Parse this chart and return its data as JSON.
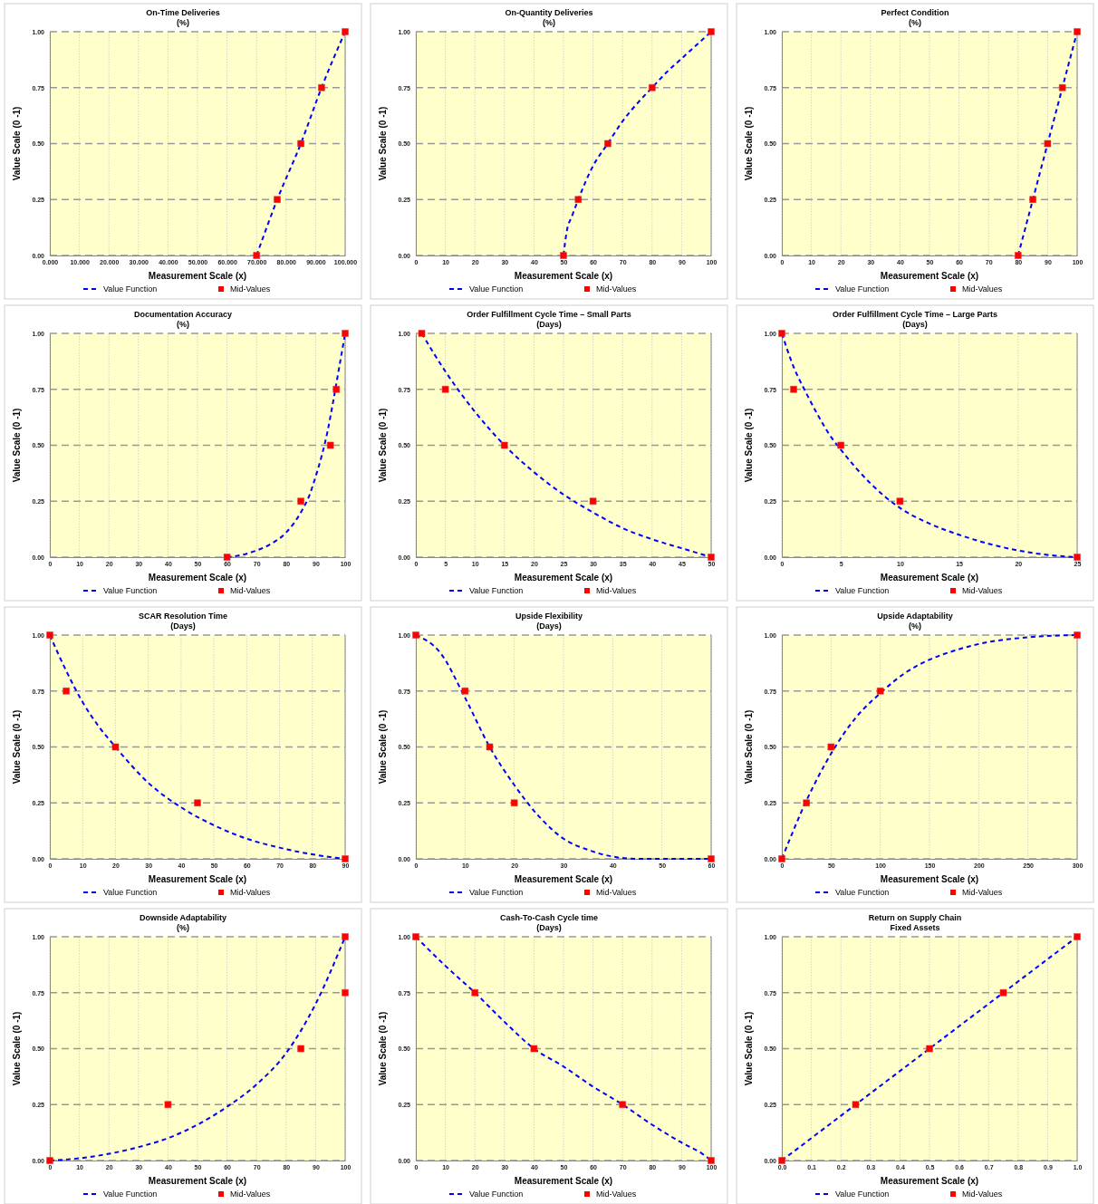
{
  "chart_data": [
    {
      "type": "line",
      "title": "On-Time Deliveries",
      "subtitle": "(%)",
      "xlabel": "Measurement  Scale (x)",
      "ylabel": "Value Scale (0 -1)",
      "xlim": [
        0,
        100
      ],
      "xticks": [
        {
          "value": 0,
          "label": "0.000"
        },
        {
          "value": 10,
          "label": "10.000"
        },
        {
          "value": 20,
          "label": "20.000"
        },
        {
          "value": 30,
          "label": "30.000"
        },
        {
          "value": 40,
          "label": "40.000"
        },
        {
          "value": 50,
          "label": "50.000"
        },
        {
          "value": 60,
          "label": "60.000"
        },
        {
          "value": 70,
          "label": "70.000"
        },
        {
          "value": 80,
          "label": "80.000"
        },
        {
          "value": 90,
          "label": "90.000"
        },
        {
          "value": 100,
          "label": "100.000"
        }
      ],
      "ylim": [
        0,
        1
      ],
      "yticks": [
        {
          "value": 0,
          "label": "0.00"
        },
        {
          "value": 0.25,
          "label": "0.25"
        },
        {
          "value": 0.5,
          "label": "0.50"
        },
        {
          "value": 0.75,
          "label": "0.75"
        },
        {
          "value": 1,
          "label": "1.00"
        }
      ],
      "grid": true,
      "legend": "bottom",
      "series": [
        {
          "name": "Value Function",
          "type": "line",
          "color": "#0000ff",
          "line_style": "dashed",
          "marker": "none",
          "x": [
            70,
            77,
            85,
            92,
            100
          ],
          "values": [
            0,
            0.25,
            0.5,
            0.75,
            1
          ]
        },
        {
          "name": "Mid-Values",
          "type": "scatter",
          "color": "#ff0000",
          "marker": "square",
          "x": [
            70,
            77,
            85,
            92,
            100
          ],
          "values": [
            0,
            0.25,
            0.5,
            0.75,
            1
          ]
        }
      ]
    },
    {
      "type": "line",
      "title": "On-Quantity Deliveries",
      "subtitle": "(%)",
      "xlabel": "Measurement  Scale (x)",
      "ylabel": "Value Scale (0 -1)",
      "xlim": [
        0,
        100
      ],
      "xticks": [
        0,
        10,
        20,
        30,
        40,
        50,
        60,
        70,
        80,
        90,
        100
      ],
      "ylim": [
        0,
        1
      ],
      "yticks": [
        {
          "value": 0,
          "label": "0.00"
        },
        {
          "value": 0.25,
          "label": "0.25"
        },
        {
          "value": 0.5,
          "label": "0.50"
        },
        {
          "value": 0.75,
          "label": "0.75"
        },
        {
          "value": 1,
          "label": "1.00"
        }
      ],
      "grid": true,
      "legend": "bottom",
      "series": [
        {
          "name": "Value Function",
          "type": "line",
          "color": "#0000ff",
          "line_style": "dashed",
          "marker": "none",
          "x": [
            50,
            51,
            53,
            55,
            60,
            65,
            70,
            75,
            80,
            85,
            90,
            95,
            100
          ],
          "values": [
            0,
            0.1,
            0.18,
            0.25,
            0.4,
            0.5,
            0.6,
            0.68,
            0.75,
            0.82,
            0.88,
            0.94,
            1
          ]
        },
        {
          "name": "Mid-Values",
          "type": "scatter",
          "color": "#ff0000",
          "marker": "square",
          "x": [
            50,
            55,
            65,
            80,
            100
          ],
          "values": [
            0,
            0.25,
            0.5,
            0.75,
            1
          ]
        }
      ]
    },
    {
      "type": "line",
      "title": "Perfect Condition",
      "subtitle": "(%)",
      "xlabel": "Measurement  Scale (x)",
      "ylabel": "Value Scale (0 -1)",
      "xlim": [
        0,
        100
      ],
      "xticks": [
        0,
        10,
        20,
        30,
        40,
        50,
        60,
        70,
        80,
        90,
        100
      ],
      "ylim": [
        0,
        1
      ],
      "yticks": [
        {
          "value": 0,
          "label": "0.00"
        },
        {
          "value": 0.25,
          "label": "0.25"
        },
        {
          "value": 0.5,
          "label": "0.50"
        },
        {
          "value": 0.75,
          "label": "0.75"
        },
        {
          "value": 1,
          "label": "1.00"
        }
      ],
      "grid": true,
      "legend": "bottom",
      "series": [
        {
          "name": "Value Function",
          "type": "line",
          "color": "#0000ff",
          "line_style": "dashed",
          "marker": "none",
          "x": [
            80,
            85,
            90,
            95,
            100
          ],
          "values": [
            0,
            0.25,
            0.5,
            0.75,
            1
          ]
        },
        {
          "name": "Mid-Values",
          "type": "scatter",
          "color": "#ff0000",
          "marker": "square",
          "x": [
            80,
            85,
            90,
            95,
            100
          ],
          "values": [
            0,
            0.25,
            0.5,
            0.75,
            1
          ]
        }
      ]
    },
    {
      "type": "line",
      "title": "Documentation Accuracy",
      "subtitle": "(%)",
      "xlabel": "Measurement  Scale (x)",
      "ylabel": "Value Scale (0 -1)",
      "xlim": [
        0,
        100
      ],
      "xticks": [
        0,
        10,
        20,
        30,
        40,
        50,
        60,
        70,
        80,
        90,
        100
      ],
      "ylim": [
        0,
        1
      ],
      "yticks": [
        {
          "value": 0,
          "label": "0.00"
        },
        {
          "value": 0.25,
          "label": "0.25"
        },
        {
          "value": 0.5,
          "label": "0.50"
        },
        {
          "value": 0.75,
          "label": "0.75"
        },
        {
          "value": 1,
          "label": "1.00"
        }
      ],
      "grid": true,
      "legend": "bottom",
      "series": [
        {
          "name": "Value Function",
          "type": "line",
          "color": "#0000ff",
          "line_style": "dashed",
          "marker": "none",
          "x": [
            60,
            65,
            70,
            75,
            80,
            85,
            88,
            90,
            92,
            94,
            96,
            98,
            100
          ],
          "values": [
            0,
            0.01,
            0.03,
            0.06,
            0.11,
            0.2,
            0.28,
            0.36,
            0.45,
            0.56,
            0.7,
            0.85,
            1
          ]
        },
        {
          "name": "Mid-Values",
          "type": "scatter",
          "color": "#ff0000",
          "marker": "square",
          "x": [
            60,
            85,
            95,
            97,
            100
          ],
          "values": [
            0,
            0.25,
            0.5,
            0.75,
            1
          ]
        }
      ]
    },
    {
      "type": "line",
      "title": "Order Fulfillment Cycle Time – Small Parts",
      "subtitle": "(Days)",
      "xlabel": "Measurement  Scale (x)",
      "ylabel": "Value Scale (0 -1)",
      "xlim": [
        0,
        50
      ],
      "xticks": [
        0,
        5,
        10,
        15,
        20,
        25,
        30,
        35,
        40,
        45,
        50
      ],
      "ylim": [
        0,
        1
      ],
      "yticks": [
        {
          "value": 0,
          "label": "0.00"
        },
        {
          "value": 0.25,
          "label": "0.25"
        },
        {
          "value": 0.5,
          "label": "0.50"
        },
        {
          "value": 0.75,
          "label": "0.75"
        },
        {
          "value": 1,
          "label": "1.00"
        }
      ],
      "grid": true,
      "legend": "bottom",
      "series": [
        {
          "name": "Value Function",
          "type": "line",
          "color": "#0000ff",
          "line_style": "dashed",
          "marker": "none",
          "x": [
            1,
            5,
            10,
            15,
            20,
            25,
            30,
            35,
            40,
            45,
            50
          ],
          "values": [
            1,
            0.83,
            0.65,
            0.5,
            0.38,
            0.28,
            0.2,
            0.13,
            0.08,
            0.04,
            0
          ]
        },
        {
          "name": "Mid-Values",
          "type": "scatter",
          "color": "#ff0000",
          "marker": "square",
          "x": [
            1,
            5,
            15,
            30,
            50
          ],
          "values": [
            1,
            0.75,
            0.5,
            0.25,
            0
          ]
        }
      ]
    },
    {
      "type": "line",
      "title": "Order Fulfillment Cycle Time – Large Parts",
      "subtitle": "(Days)",
      "xlabel": "Measurement  Scale (x)",
      "ylabel": "Value Scale (0 -1)",
      "xlim": [
        0,
        25
      ],
      "xticks": [
        0,
        5,
        10,
        15,
        20,
        25
      ],
      "ylim": [
        0,
        1
      ],
      "yticks": [
        {
          "value": 0,
          "label": "0.00"
        },
        {
          "value": 0.25,
          "label": "0.25"
        },
        {
          "value": 0.5,
          "label": "0.50"
        },
        {
          "value": 0.75,
          "label": "0.75"
        },
        {
          "value": 1,
          "label": "1.00"
        }
      ],
      "grid": true,
      "legend": "bottom",
      "series": [
        {
          "name": "Value Function",
          "type": "line",
          "color": "#0000ff",
          "line_style": "dashed",
          "marker": "none",
          "x": [
            0,
            1,
            2,
            3,
            4,
            5,
            7.5,
            10,
            12.5,
            15,
            17.5,
            20,
            22.5,
            25
          ],
          "values": [
            1,
            0.85,
            0.74,
            0.64,
            0.55,
            0.48,
            0.33,
            0.22,
            0.15,
            0.1,
            0.06,
            0.03,
            0.01,
            0
          ]
        },
        {
          "name": "Mid-Values",
          "type": "scatter",
          "color": "#ff0000",
          "marker": "square",
          "x": [
            0,
            1,
            5,
            10,
            25
          ],
          "values": [
            1,
            0.75,
            0.5,
            0.25,
            0
          ]
        }
      ]
    },
    {
      "type": "line",
      "title": "SCAR Resolution Time",
      "subtitle": "(Days)",
      "xlabel": "Measurement  Scale (x)",
      "ylabel": "Value Scale (0 -1)",
      "xlim": [
        0,
        90
      ],
      "xticks": [
        0,
        10,
        20,
        30,
        40,
        50,
        60,
        70,
        80,
        90
      ],
      "ylim": [
        0,
        1
      ],
      "yticks": [
        {
          "value": 0,
          "label": "0.00"
        },
        {
          "value": 0.25,
          "label": "0.25"
        },
        {
          "value": 0.5,
          "label": "0.50"
        },
        {
          "value": 0.75,
          "label": "0.75"
        },
        {
          "value": 1,
          "label": "1.00"
        }
      ],
      "grid": true,
      "legend": "bottom",
      "series": [
        {
          "name": "Value Function",
          "type": "line",
          "color": "#0000ff",
          "line_style": "dashed",
          "marker": "none",
          "x": [
            0,
            5,
            10,
            15,
            20,
            30,
            40,
            50,
            60,
            70,
            80,
            90
          ],
          "values": [
            1,
            0.84,
            0.7,
            0.59,
            0.5,
            0.34,
            0.23,
            0.15,
            0.09,
            0.05,
            0.02,
            0
          ]
        },
        {
          "name": "Mid-Values",
          "type": "scatter",
          "color": "#ff0000",
          "marker": "square",
          "x": [
            0,
            5,
            20,
            45,
            90
          ],
          "values": [
            1,
            0.75,
            0.5,
            0.25,
            0
          ]
        }
      ]
    },
    {
      "type": "line",
      "title": "Upside Flexibility",
      "subtitle": "(Days)",
      "xlabel": "Measurement  Scale (x)",
      "ylabel": "Value Scale (0 -1)",
      "xlim": [
        0,
        60
      ],
      "xticks": [
        0,
        10,
        20,
        30,
        40,
        50,
        60
      ],
      "ylim": [
        0,
        1
      ],
      "yticks": [
        {
          "value": 0,
          "label": "0.00"
        },
        {
          "value": 0.25,
          "label": "0.25"
        },
        {
          "value": 0.5,
          "label": "0.50"
        },
        {
          "value": 0.75,
          "label": "0.75"
        },
        {
          "value": 1,
          "label": "1.00"
        }
      ],
      "grid": true,
      "legend": "bottom",
      "series": [
        {
          "name": "Value Function",
          "type": "line",
          "color": "#0000ff",
          "line_style": "dashed",
          "marker": "none",
          "x": [
            0,
            5,
            10,
            15,
            20,
            25,
            30,
            35,
            40,
            45,
            60
          ],
          "values": [
            1,
            0.92,
            0.72,
            0.5,
            0.33,
            0.19,
            0.09,
            0.04,
            0.01,
            0,
            0
          ]
        },
        {
          "name": "Mid-Values",
          "type": "scatter",
          "color": "#ff0000",
          "marker": "square",
          "x": [
            0,
            10,
            15,
            20,
            60
          ],
          "values": [
            1,
            0.75,
            0.5,
            0.25,
            0
          ]
        }
      ]
    },
    {
      "type": "line",
      "title": "Upside Adaptability",
      "subtitle": "(%)",
      "xlabel": "Measurement  Scale (x)",
      "ylabel": "Value Scale (0 -1)",
      "xlim": [
        0,
        300
      ],
      "xticks": [
        0,
        50,
        100,
        150,
        200,
        250,
        300
      ],
      "ylim": [
        0,
        1
      ],
      "yticks": [
        {
          "value": 0,
          "label": "0.00"
        },
        {
          "value": 0.25,
          "label": "0.25"
        },
        {
          "value": 0.5,
          "label": "0.50"
        },
        {
          "value": 0.75,
          "label": "0.75"
        },
        {
          "value": 1,
          "label": "1.00"
        }
      ],
      "grid": true,
      "legend": "bottom",
      "series": [
        {
          "name": "Value Function",
          "type": "line",
          "color": "#0000ff",
          "line_style": "dashed",
          "marker": "none",
          "x": [
            0,
            25,
            50,
            75,
            100,
            125,
            150,
            175,
            200,
            250,
            300
          ],
          "values": [
            0,
            0.26,
            0.47,
            0.63,
            0.74,
            0.83,
            0.89,
            0.93,
            0.96,
            0.99,
            1
          ]
        },
        {
          "name": "Mid-Values",
          "type": "scatter",
          "color": "#ff0000",
          "marker": "square",
          "x": [
            0,
            25,
            50,
            100,
            300
          ],
          "values": [
            0,
            0.25,
            0.5,
            0.75,
            1
          ]
        }
      ]
    },
    {
      "type": "line",
      "title": "Downside Adaptability",
      "subtitle": "(%)",
      "xlabel": "Measurement  Scale (x)",
      "ylabel": "Value Scale (0 -1)",
      "xlim": [
        0,
        100
      ],
      "xticks": [
        0,
        10,
        20,
        30,
        40,
        50,
        60,
        70,
        80,
        90,
        100
      ],
      "ylim": [
        0,
        1
      ],
      "yticks": [
        {
          "value": 0,
          "label": "0.00"
        },
        {
          "value": 0.25,
          "label": "0.25"
        },
        {
          "value": 0.5,
          "label": "0.50"
        },
        {
          "value": 0.75,
          "label": "0.75"
        },
        {
          "value": 1,
          "label": "1.00"
        }
      ],
      "grid": true,
      "legend": "bottom",
      "series": [
        {
          "name": "Value Function",
          "type": "line",
          "color": "#0000ff",
          "line_style": "dashed",
          "marker": "none",
          "x": [
            0,
            10,
            20,
            30,
            40,
            50,
            60,
            70,
            80,
            90,
            100
          ],
          "values": [
            0,
            0.01,
            0.03,
            0.06,
            0.1,
            0.16,
            0.24,
            0.34,
            0.48,
            0.7,
            1
          ]
        },
        {
          "name": "Mid-Values",
          "type": "scatter",
          "color": "#ff0000",
          "marker": "square",
          "x": [
            0,
            40,
            85,
            100,
            100
          ],
          "values": [
            0,
            0.25,
            0.5,
            0.75,
            1
          ]
        }
      ]
    },
    {
      "type": "line",
      "title": "Cash-To-Cash Cycle time",
      "subtitle": "(Days)",
      "xlabel": "Measurement  Scale (x)",
      "ylabel": "Value Scale (0 -1)",
      "xlim": [
        0,
        100
      ],
      "xticks": [
        0,
        10,
        20,
        30,
        40,
        50,
        60,
        70,
        80,
        90,
        100
      ],
      "ylim": [
        0,
        1
      ],
      "yticks": [
        {
          "value": 0,
          "label": "0.00"
        },
        {
          "value": 0.25,
          "label": "0.25"
        },
        {
          "value": 0.5,
          "label": "0.50"
        },
        {
          "value": 0.75,
          "label": "0.75"
        },
        {
          "value": 1,
          "label": "1.00"
        }
      ],
      "grid": true,
      "legend": "bottom",
      "series": [
        {
          "name": "Value Function",
          "type": "line",
          "color": "#0000ff",
          "line_style": "dashed",
          "marker": "none",
          "x": [
            0,
            10,
            20,
            30,
            40,
            50,
            60,
            70,
            80,
            90,
            97,
            100
          ],
          "values": [
            1,
            0.87,
            0.75,
            0.62,
            0.5,
            0.42,
            0.33,
            0.25,
            0.16,
            0.08,
            0.03,
            0
          ]
        },
        {
          "name": "Mid-Values",
          "type": "scatter",
          "color": "#ff0000",
          "marker": "square",
          "x": [
            0,
            20,
            40,
            70,
            100
          ],
          "values": [
            1,
            0.75,
            0.5,
            0.25,
            0
          ]
        }
      ]
    },
    {
      "type": "line",
      "title": "Return on Supply Chain",
      "subtitle": "Fixed Assets",
      "xlabel": "Measurement  Scale (x)",
      "ylabel": "Value Scale (0 -1)",
      "xlim": [
        0,
        1
      ],
      "xticks": [
        {
          "value": 0,
          "label": "0.0"
        },
        {
          "value": 0.1,
          "label": "0.1"
        },
        {
          "value": 0.2,
          "label": "0.2"
        },
        {
          "value": 0.3,
          "label": "0.3"
        },
        {
          "value": 0.4,
          "label": "0.4"
        },
        {
          "value": 0.5,
          "label": "0.5"
        },
        {
          "value": 0.6,
          "label": "0.6"
        },
        {
          "value": 0.7,
          "label": "0.7"
        },
        {
          "value": 0.8,
          "label": "0.8"
        },
        {
          "value": 0.9,
          "label": "0.9"
        },
        {
          "value": 1,
          "label": "1.0"
        }
      ],
      "ylim": [
        0,
        1
      ],
      "yticks": [
        {
          "value": 0,
          "label": "0.00"
        },
        {
          "value": 0.25,
          "label": "0.25"
        },
        {
          "value": 0.5,
          "label": "0.50"
        },
        {
          "value": 0.75,
          "label": "0.75"
        },
        {
          "value": 1,
          "label": "1.00"
        }
      ],
      "grid": true,
      "legend": "bottom",
      "series": [
        {
          "name": "Value Function",
          "type": "line",
          "color": "#0000ff",
          "line_style": "dashed",
          "marker": "none",
          "x": [
            0,
            0.25,
            0.5,
            0.75,
            1
          ],
          "values": [
            0,
            0.25,
            0.5,
            0.75,
            1
          ]
        },
        {
          "name": "Mid-Values",
          "type": "scatter",
          "color": "#ff0000",
          "marker": "square",
          "x": [
            0,
            0.25,
            0.5,
            0.75,
            1
          ],
          "values": [
            0,
            0.25,
            0.5,
            0.75,
            1
          ]
        }
      ]
    }
  ]
}
